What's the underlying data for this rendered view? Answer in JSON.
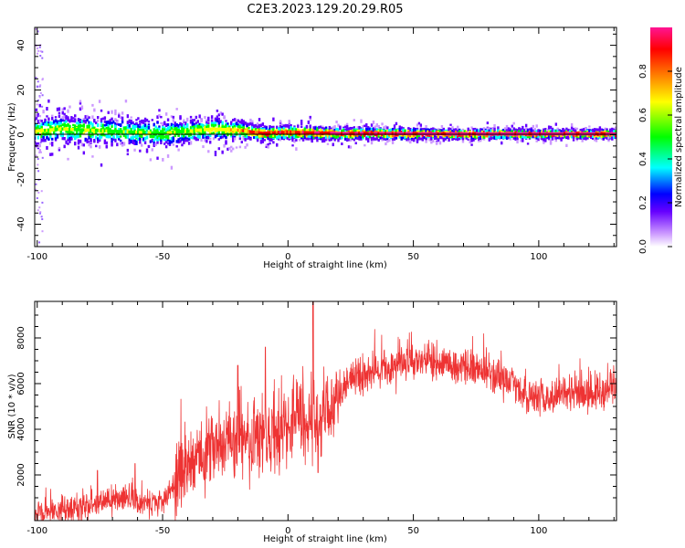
{
  "title": "C2E3.2023.129.20.29.R05",
  "chart_data": [
    {
      "type": "heatmap",
      "xlabel": "Height of straight line (km)",
      "ylabel": "Frequency (Hz)",
      "xlim": [
        -101,
        131
      ],
      "ylim": [
        -50,
        48
      ],
      "x_ticks": [
        -100,
        -50,
        0,
        50,
        100
      ],
      "y_ticks": [
        -40,
        -20,
        0,
        20,
        40
      ],
      "grid": false,
      "colorbar": {
        "label": "Normalized spectral amplitude",
        "range": [
          0,
          1
        ],
        "ticks": [
          0.0,
          0.2,
          0.4,
          0.6,
          0.8
        ],
        "colormap": [
          "#ffffff",
          "#cc99ff",
          "#6600ff",
          "#0000ff",
          "#00ffff",
          "#00ff00",
          "#ffff00",
          "#ff8000",
          "#ff0000",
          "#ff1493"
        ]
      },
      "ridge": {
        "x": [
          -101,
          -90,
          -80,
          -70,
          -60,
          -50,
          -40,
          -30,
          -20,
          -10,
          0,
          20,
          40,
          60,
          80,
          100,
          131
        ],
        "center_hz": [
          1.5,
          2.5,
          2.0,
          1.5,
          1.0,
          0.5,
          1.5,
          2.5,
          2.0,
          0.5,
          1.0,
          0.5,
          0.5,
          0.3,
          0.3,
          0.3,
          0.3
        ],
        "spread_hz": [
          5,
          6,
          6,
          6,
          6,
          6,
          5,
          5,
          4,
          3,
          3,
          2.5,
          2.5,
          2,
          2,
          1.8,
          1.8
        ],
        "peak_amplitude": [
          0.55,
          0.5,
          0.5,
          0.45,
          0.45,
          0.45,
          0.5,
          0.55,
          0.65,
          0.85,
          0.8,
          0.9,
          0.9,
          0.95,
          0.95,
          0.95,
          0.95
        ]
      }
    },
    {
      "type": "line",
      "xlabel": "Height of straight line (km)",
      "ylabel": "SNR (10 * v/v)",
      "xlim": [
        -101,
        131
      ],
      "ylim": [
        0,
        9600
      ],
      "x_ticks": [
        -100,
        -50,
        0,
        50,
        100
      ],
      "y_ticks": [
        2000,
        4000,
        6000,
        8000
      ],
      "color": "#ee3333",
      "series": [
        {
          "x": [
            -101,
            -95,
            -90,
            -85,
            -80,
            -75,
            -70,
            -65,
            -60,
            -55,
            -50,
            -45,
            -40,
            -35,
            -30,
            -25,
            -20,
            -15,
            -10,
            -5,
            0,
            5,
            10,
            15,
            20,
            25,
            30,
            35,
            40,
            45,
            50,
            55,
            60,
            65,
            70,
            75,
            80,
            85,
            90,
            95,
            100,
            105,
            110,
            115,
            120,
            125,
            131
          ],
          "y": [
            300,
            350,
            400,
            550,
            700,
            850,
            900,
            900,
            800,
            900,
            800,
            1500,
            2300,
            2900,
            3200,
            3300,
            3500,
            3600,
            3600,
            3900,
            4300,
            4600,
            4500,
            4700,
            5500,
            6100,
            6400,
            6600,
            6700,
            6800,
            7000,
            7000,
            6900,
            6800,
            6700,
            6600,
            6500,
            6300,
            6000,
            5600,
            5300,
            5300,
            5600,
            5800,
            5500,
            5600,
            5700
          ]
        }
      ],
      "annotations_spikes": [
        {
          "x": -76,
          "y": 2200
        },
        {
          "x": -61,
          "y": 2500
        },
        {
          "x": -20,
          "y": 6800
        },
        {
          "x": -9,
          "y": 7600
        },
        {
          "x": 10,
          "y": 9600
        },
        {
          "x": 12,
          "y": 2100
        }
      ]
    }
  ]
}
